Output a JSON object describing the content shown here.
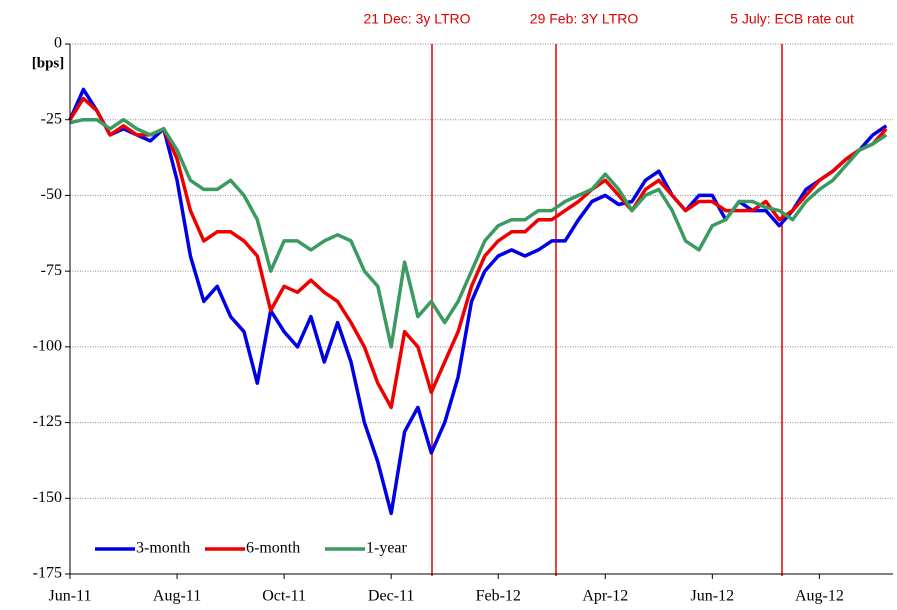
{
  "chart_data": {
    "type": "line",
    "y_label": "[bps]",
    "annotations": [
      "21 Dec: 3y LTRO",
      "29 Feb: 3Y LTRO",
      "5 July: ECB rate cut"
    ],
    "categories": [
      "Jun-11",
      null,
      null,
      null,
      null,
      null,
      null,
      null,
      "Aug-11",
      null,
      null,
      null,
      null,
      null,
      null,
      null,
      "Oct-11",
      null,
      null,
      null,
      null,
      null,
      null,
      null,
      "Dec-11",
      null,
      null,
      null,
      null,
      null,
      null,
      null,
      "Feb-12",
      null,
      null,
      null,
      null,
      null,
      null,
      null,
      "Apr-12",
      null,
      null,
      null,
      null,
      null,
      null,
      null,
      "Jun-12",
      null,
      null,
      null,
      null,
      null,
      null,
      null,
      "Aug-12",
      null,
      null,
      null,
      null,
      null
    ],
    "ylim": [
      -175,
      0
    ],
    "yticks": [
      0,
      -25,
      -50,
      -75,
      -100,
      -125,
      -150,
      -175
    ],
    "grid": true,
    "legend": "lower left",
    "series": [
      {
        "name": "3-month",
        "color": "#0000e6",
        "values": [
          -25,
          -15,
          -22,
          -30,
          -28,
          -30,
          -32,
          -28,
          -45,
          -70,
          -85,
          -80,
          -90,
          -95,
          -112,
          -88,
          -95,
          -100,
          -90,
          -105,
          -92,
          -105,
          -125,
          -138,
          -155,
          -128,
          -120,
          -135,
          -125,
          -110,
          -85,
          -75,
          -70,
          -68,
          -70,
          -68,
          -65,
          -65,
          -58,
          -52,
          -50,
          -53,
          -52,
          -45,
          -42,
          -50,
          -55,
          -50,
          -50,
          -58,
          -52,
          -55,
          -55,
          -60,
          -55,
          -48,
          -45,
          -42,
          -38,
          -35,
          -30,
          -27
        ]
      },
      {
        "name": "6-month",
        "color": "#ee0000",
        "values": [
          -25,
          -18,
          -22,
          -30,
          -27,
          -30,
          -30,
          -28,
          -38,
          -55,
          -65,
          -62,
          -62,
          -65,
          -70,
          -88,
          -80,
          -82,
          -78,
          -82,
          -85,
          -92,
          -100,
          -112,
          -120,
          -95,
          -100,
          -115,
          -105,
          -95,
          -80,
          -70,
          -65,
          -62,
          -62,
          -58,
          -58,
          -55,
          -52,
          -48,
          -45,
          -50,
          -55,
          -48,
          -45,
          -50,
          -55,
          -52,
          -52,
          -55,
          -55,
          -55,
          -52,
          -58,
          -55,
          -50,
          -45,
          -42,
          -38,
          -35,
          -33,
          -28
        ]
      },
      {
        "name": "1-year",
        "color": "#3a9a60",
        "values": [
          -26,
          -25,
          -25,
          -28,
          -25,
          -28,
          -30,
          -28,
          -35,
          -45,
          -48,
          -48,
          -45,
          -50,
          -58,
          -75,
          -65,
          -65,
          -68,
          -65,
          -63,
          -65,
          -75,
          -80,
          -100,
          -72,
          -90,
          -85,
          -92,
          -85,
          -75,
          -65,
          -60,
          -58,
          -58,
          -55,
          -55,
          -52,
          -50,
          -48,
          -43,
          -48,
          -55,
          -50,
          -48,
          -55,
          -65,
          -68,
          -60,
          -58,
          -52,
          -52,
          -54,
          -55,
          -58,
          -52,
          -48,
          -45,
          -40,
          -35,
          -33,
          -30
        ]
      }
    ]
  }
}
